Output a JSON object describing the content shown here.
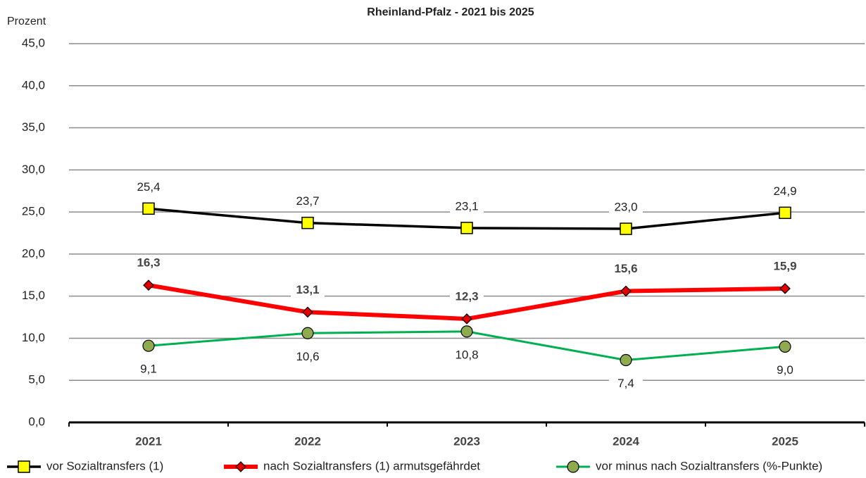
{
  "chart_data": {
    "type": "line",
    "title": "Rheinland-Pfalz - 2021 bis 2025",
    "y_label": "Prozent",
    "categories": [
      "2021",
      "2022",
      "2023",
      "2024",
      "2025"
    ],
    "ylim": [
      0,
      45
    ],
    "yticks": [
      {
        "value": 0,
        "label": "0,0"
      },
      {
        "value": 5,
        "label": "5,0"
      },
      {
        "value": 10,
        "label": "10,0"
      },
      {
        "value": 15,
        "label": "15,0"
      },
      {
        "value": 20,
        "label": "20,0"
      },
      {
        "value": 25,
        "label": "25,0"
      },
      {
        "value": 30,
        "label": "30,0"
      },
      {
        "value": 35,
        "label": "35,0"
      },
      {
        "value": 40,
        "label": "40,0"
      },
      {
        "value": 45,
        "label": "45,0"
      }
    ],
    "grid": true,
    "legend": "bottom",
    "series": [
      {
        "name": "vor Sozialtransfers (1)",
        "color": "#000000",
        "marker_color": "#ffff00",
        "marker": "square",
        "values": [
          25.4,
          23.7,
          23.1,
          23.0,
          24.9
        ],
        "value_labels": [
          "25,4",
          "23,7",
          "23,1",
          "23,0",
          "24,9"
        ]
      },
      {
        "name": "nach Sozialtransfers (1) armutsgefährdet",
        "color": "#ff0000",
        "marker_color": "#e00000",
        "marker": "diamond",
        "values": [
          16.3,
          13.1,
          12.3,
          15.6,
          15.9
        ],
        "value_labels": [
          "16,3",
          "13,1",
          "12,3",
          "15,6",
          "15,9"
        ]
      },
      {
        "name": "vor minus nach Sozialtransfers (%-Punkte)",
        "color": "#00b050",
        "marker_color": "#8faa4f",
        "marker": "circle",
        "values": [
          9.1,
          10.6,
          10.8,
          7.4,
          9.0
        ],
        "value_labels": [
          "9,1",
          "10,6",
          "10,8",
          "7,4",
          "9,0"
        ]
      }
    ]
  }
}
